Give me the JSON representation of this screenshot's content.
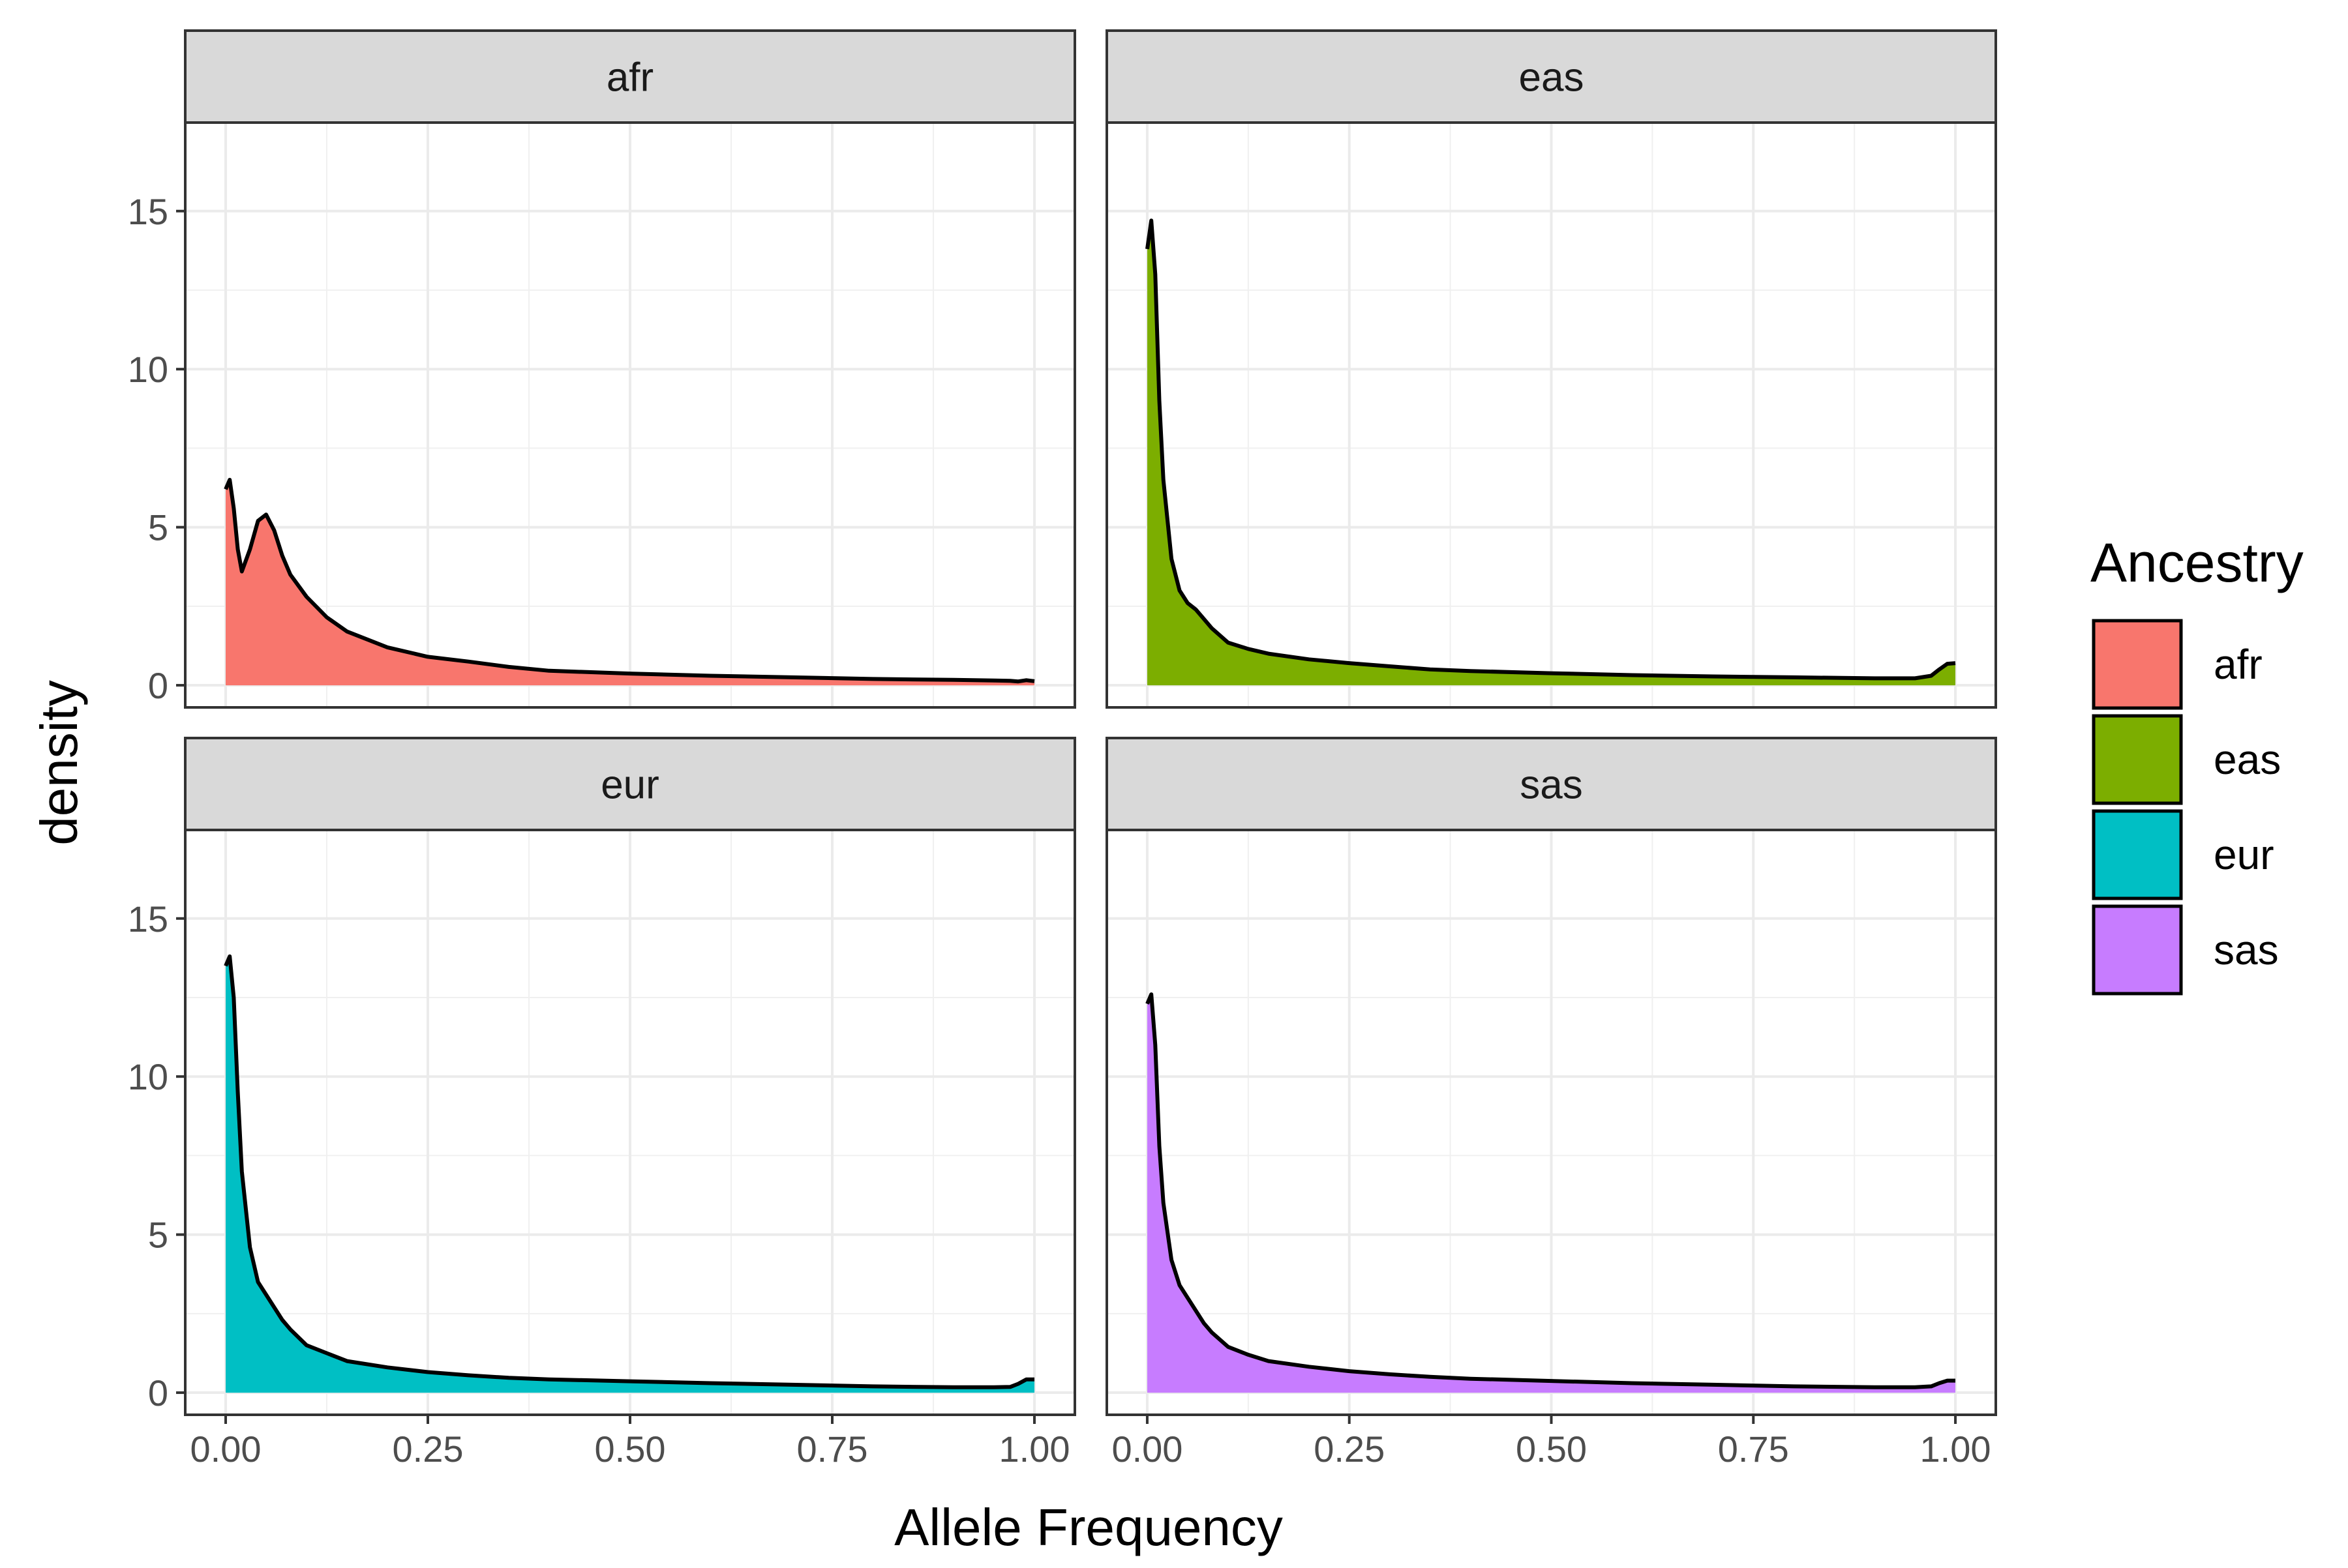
{
  "chart_data": {
    "type": "area",
    "xlabel": "Allele Frequency",
    "ylabel": "density",
    "xlim": [
      -0.05,
      1.05
    ],
    "ylim": [
      -0.7,
      17.8
    ],
    "x_ticks": [
      0,
      0.25,
      0.5,
      0.75,
      1
    ],
    "x_tick_labels": [
      "0.00",
      "0.25",
      "0.50",
      "0.75",
      "1.00"
    ],
    "y_ticks": [
      0,
      5,
      10,
      15
    ],
    "y_tick_labels": [
      "0",
      "5",
      "10",
      "15"
    ],
    "grid": true,
    "legend": {
      "title": "Ancestry",
      "position": "right",
      "entries": [
        "afr",
        "eas",
        "eur",
        "sas"
      ]
    },
    "x": [
      0,
      0.005,
      0.01,
      0.015,
      0.02,
      0.03,
      0.04,
      0.05,
      0.06,
      0.07,
      0.08,
      0.1,
      0.125,
      0.15,
      0.2,
      0.25,
      0.3,
      0.35,
      0.4,
      0.5,
      0.6,
      0.7,
      0.8,
      0.9,
      0.95,
      0.97,
      0.98,
      0.99,
      1.0
    ],
    "series": [
      {
        "name": "afr",
        "color": "#F8766D",
        "values": [
          6.2,
          6.5,
          5.6,
          4.3,
          3.6,
          4.3,
          5.2,
          5.4,
          4.9,
          4.1,
          3.5,
          2.8,
          2.15,
          1.7,
          1.2,
          0.9,
          0.75,
          0.58,
          0.46,
          0.37,
          0.3,
          0.25,
          0.2,
          0.17,
          0.15,
          0.14,
          0.12,
          0.16,
          0.13
        ]
      },
      {
        "name": "eas",
        "color": "#7CAE00",
        "values": [
          13.8,
          14.7,
          13.0,
          9.0,
          6.5,
          4.0,
          3.0,
          2.6,
          2.4,
          2.1,
          1.8,
          1.35,
          1.15,
          1.0,
          0.82,
          0.7,
          0.6,
          0.5,
          0.45,
          0.38,
          0.32,
          0.28,
          0.25,
          0.22,
          0.22,
          0.3,
          0.5,
          0.68,
          0.7
        ]
      },
      {
        "name": "eur",
        "color": "#00BFC4",
        "values": [
          13.5,
          13.8,
          12.5,
          9.5,
          7.0,
          4.6,
          3.5,
          3.1,
          2.7,
          2.3,
          2.0,
          1.5,
          1.25,
          1.0,
          0.8,
          0.65,
          0.55,
          0.47,
          0.42,
          0.36,
          0.3,
          0.25,
          0.2,
          0.17,
          0.17,
          0.18,
          0.28,
          0.42,
          0.42
        ]
      },
      {
        "name": "sas",
        "color": "#C77CFF",
        "values": [
          12.3,
          12.6,
          11.0,
          7.8,
          6.0,
          4.2,
          3.4,
          3.0,
          2.6,
          2.2,
          1.9,
          1.45,
          1.2,
          1.0,
          0.82,
          0.68,
          0.58,
          0.5,
          0.44,
          0.37,
          0.3,
          0.25,
          0.2,
          0.17,
          0.17,
          0.2,
          0.3,
          0.38,
          0.38
        ]
      }
    ]
  }
}
